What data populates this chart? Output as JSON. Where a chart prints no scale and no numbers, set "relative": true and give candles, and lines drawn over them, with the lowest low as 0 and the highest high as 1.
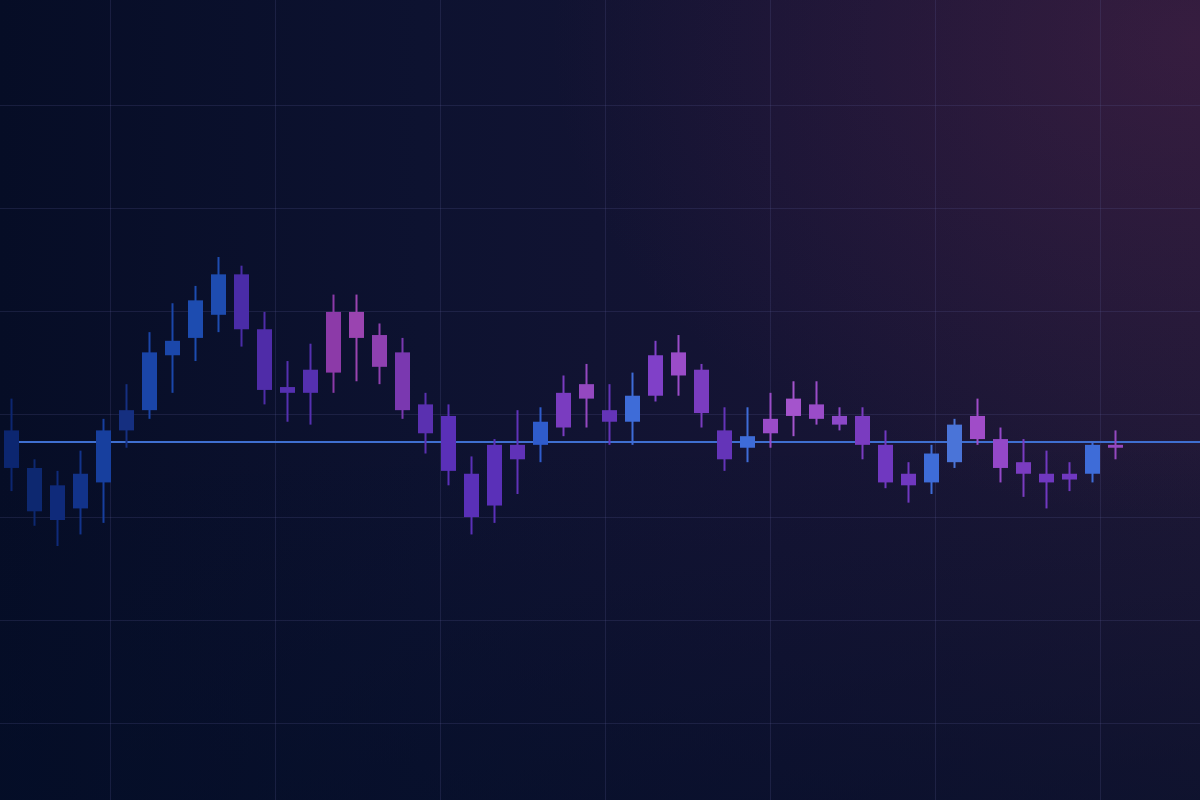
{
  "chart_data": {
    "type": "candlestick",
    "relative": true,
    "grid": true,
    "categories": [
      null,
      null,
      null,
      null,
      null,
      null,
      null,
      null,
      null,
      null,
      null,
      null,
      null,
      null,
      null,
      null,
      null,
      null,
      null,
      null,
      null,
      null,
      null,
      null,
      null,
      null,
      null,
      null,
      null,
      null,
      null,
      null,
      null,
      null,
      null,
      null,
      null,
      null,
      null,
      null,
      null,
      null,
      null,
      null,
      null,
      null,
      null,
      null,
      null
    ],
    "ohlc": [
      [
        0.4,
        0.51,
        0.19,
        0.27
      ],
      [
        0.27,
        0.3,
        0.07,
        0.12
      ],
      [
        0.21,
        0.26,
        0.0,
        0.09
      ],
      [
        0.13,
        0.33,
        0.04,
        0.25
      ],
      [
        0.22,
        0.44,
        0.08,
        0.4
      ],
      [
        0.4,
        0.56,
        0.34,
        0.47
      ],
      [
        0.47,
        0.74,
        0.44,
        0.67
      ],
      [
        0.66,
        0.84,
        0.53,
        0.71
      ],
      [
        0.72,
        0.9,
        0.64,
        0.85
      ],
      [
        0.8,
        1.0,
        0.74,
        0.94
      ],
      [
        0.94,
        0.97,
        0.69,
        0.75
      ],
      [
        0.75,
        0.81,
        0.49,
        0.54
      ],
      [
        0.55,
        0.64,
        0.43,
        0.53
      ],
      [
        0.61,
        0.7,
        0.42,
        0.53
      ],
      [
        0.6,
        0.87,
        0.53,
        0.81
      ],
      [
        0.81,
        0.87,
        0.57,
        0.72
      ],
      [
        0.73,
        0.77,
        0.56,
        0.62
      ],
      [
        0.67,
        0.72,
        0.44,
        0.47
      ],
      [
        0.49,
        0.53,
        0.32,
        0.39
      ],
      [
        0.45,
        0.49,
        0.21,
        0.26
      ],
      [
        0.25,
        0.31,
        0.04,
        0.1
      ],
      [
        0.35,
        0.37,
        0.08,
        0.14
      ],
      [
        0.3,
        0.47,
        0.18,
        0.35
      ],
      [
        0.35,
        0.48,
        0.29,
        0.43
      ],
      [
        0.53,
        0.59,
        0.38,
        0.41
      ],
      [
        0.51,
        0.63,
        0.41,
        0.56
      ],
      [
        0.47,
        0.56,
        0.35,
        0.43
      ],
      [
        0.43,
        0.6,
        0.35,
        0.52
      ],
      [
        0.52,
        0.71,
        0.5,
        0.66
      ],
      [
        0.67,
        0.73,
        0.52,
        0.59
      ],
      [
        0.61,
        0.63,
        0.41,
        0.46
      ],
      [
        0.4,
        0.48,
        0.26,
        0.3
      ],
      [
        0.34,
        0.48,
        0.29,
        0.38
      ],
      [
        0.44,
        0.53,
        0.34,
        0.39
      ],
      [
        0.45,
        0.57,
        0.38,
        0.51
      ],
      [
        0.49,
        0.57,
        0.42,
        0.44
      ],
      [
        0.45,
        0.48,
        0.4,
        0.42
      ],
      [
        0.45,
        0.48,
        0.3,
        0.35
      ],
      [
        0.35,
        0.4,
        0.2,
        0.22
      ],
      [
        0.25,
        0.29,
        0.15,
        0.21
      ],
      [
        0.22,
        0.35,
        0.18,
        0.32
      ],
      [
        0.29,
        0.44,
        0.27,
        0.42
      ],
      [
        0.37,
        0.51,
        0.35,
        0.45
      ],
      [
        0.37,
        0.41,
        0.22,
        0.27
      ],
      [
        0.29,
        0.37,
        0.17,
        0.25
      ],
      [
        0.25,
        0.33,
        0.13,
        0.22
      ],
      [
        0.25,
        0.29,
        0.19,
        0.23
      ],
      [
        0.25,
        0.36,
        0.22,
        0.35
      ],
      [
        0.34,
        0.4,
        0.3,
        0.35
      ]
    ],
    "colors": [
      "#0c2670",
      "#0d2870",
      "#0f2a7a",
      "#12338a",
      "#173f9e",
      "#152f80",
      "#1a45a8",
      "#1b47aa",
      "#1d4cb0",
      "#1e4cb0",
      "#4a2ca8",
      "#4f2ca8",
      "#5530b0",
      "#5530b0",
      "#8c3aa8",
      "#9a44b0",
      "#8e40b0",
      "#7a38b0",
      "#5a30b0",
      "#5a30b8",
      "#5a30b8",
      "#5a30b8",
      "#6032b8",
      "#2f5ccc",
      "#7a3cc0",
      "#9448c0",
      "#6434b8",
      "#3e6cd8",
      "#8040c8",
      "#9a4cc8",
      "#7a3cc0",
      "#6434b8",
      "#3e6cd8",
      "#9a4cc8",
      "#a454cc",
      "#9a4cc8",
      "#8c48c8",
      "#7a3cc0",
      "#7038c0",
      "#7038c0",
      "#3e6cd8",
      "#4a74d8",
      "#a04cc8",
      "#9448c8",
      "#7a3cc0",
      "#7038c0",
      "#7038c0",
      "#3e6cd8",
      "#9448c0"
    ],
    "ref_lines": [
      {
        "axis": "y",
        "value": 0.36,
        "color": "#3f6fd0"
      }
    ]
  }
}
